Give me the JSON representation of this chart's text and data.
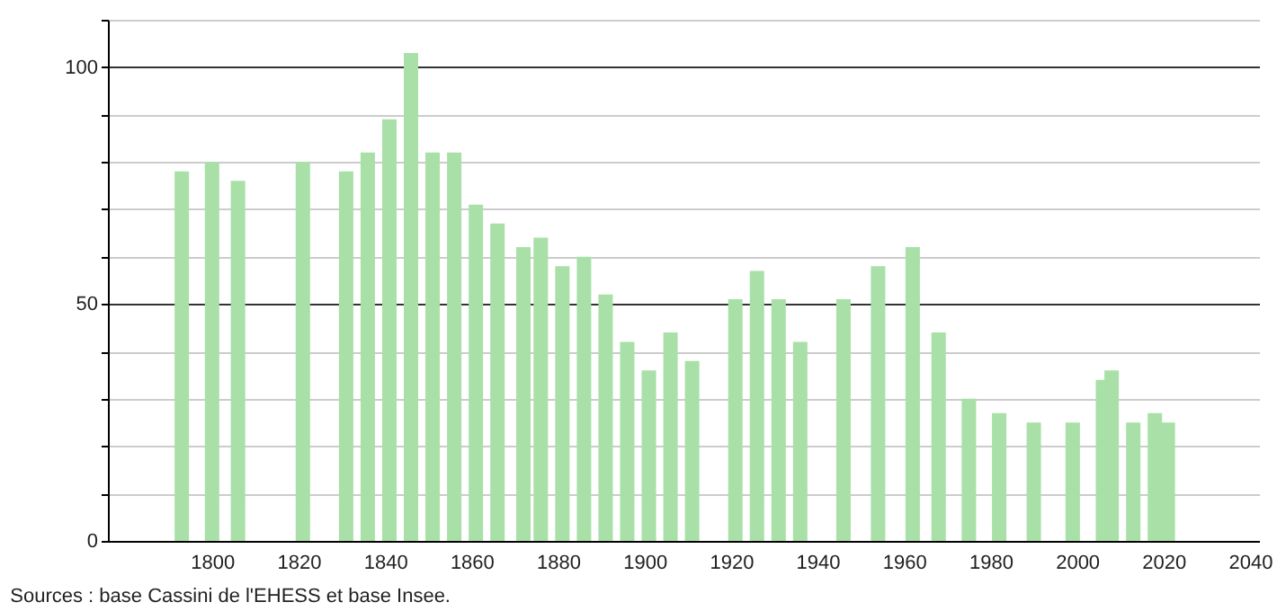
{
  "chart_data": {
    "type": "bar",
    "x": [
      1793,
      1800,
      1806,
      1821,
      1831,
      1836,
      1841,
      1846,
      1851,
      1856,
      1861,
      1866,
      1872,
      1876,
      1881,
      1886,
      1891,
      1896,
      1901,
      1906,
      1911,
      1921,
      1926,
      1931,
      1936,
      1946,
      1954,
      1962,
      1968,
      1975,
      1982,
      1990,
      1999,
      2006,
      2008,
      2013,
      2018,
      2021
    ],
    "values": [
      78,
      80,
      76,
      80,
      78,
      82,
      89,
      103,
      82,
      82,
      71,
      67,
      62,
      64,
      58,
      60,
      52,
      42,
      36,
      44,
      38,
      51,
      57,
      51,
      42,
      51,
      58,
      62,
      44,
      30,
      27,
      25,
      25,
      34,
      36,
      25,
      27,
      25
    ],
    "color": "#a8e0a8",
    "xlim": [
      1778,
      2040
    ],
    "xticks": [
      1800,
      1820,
      1840,
      1860,
      1880,
      1900,
      1920,
      1940,
      1960,
      1980,
      2000,
      2020,
      2040
    ],
    "ylim": [
      0,
      110
    ],
    "yticks": [
      0,
      {
        "value": 10,
        "label": null
      },
      {
        "value": 20,
        "label": null
      },
      {
        "value": 30,
        "label": null
      },
      {
        "value": 40,
        "label": null
      },
      50,
      {
        "value": 60,
        "label": null
      },
      {
        "value": 70,
        "label": null
      },
      {
        "value": 80,
        "label": null
      },
      {
        "value": 90,
        "label": null
      },
      100,
      {
        "value": 110,
        "label": null
      }
    ],
    "grid": "y",
    "annotations": [
      "Sources : base Cassini de l'EHESS et base Insee."
    ]
  }
}
